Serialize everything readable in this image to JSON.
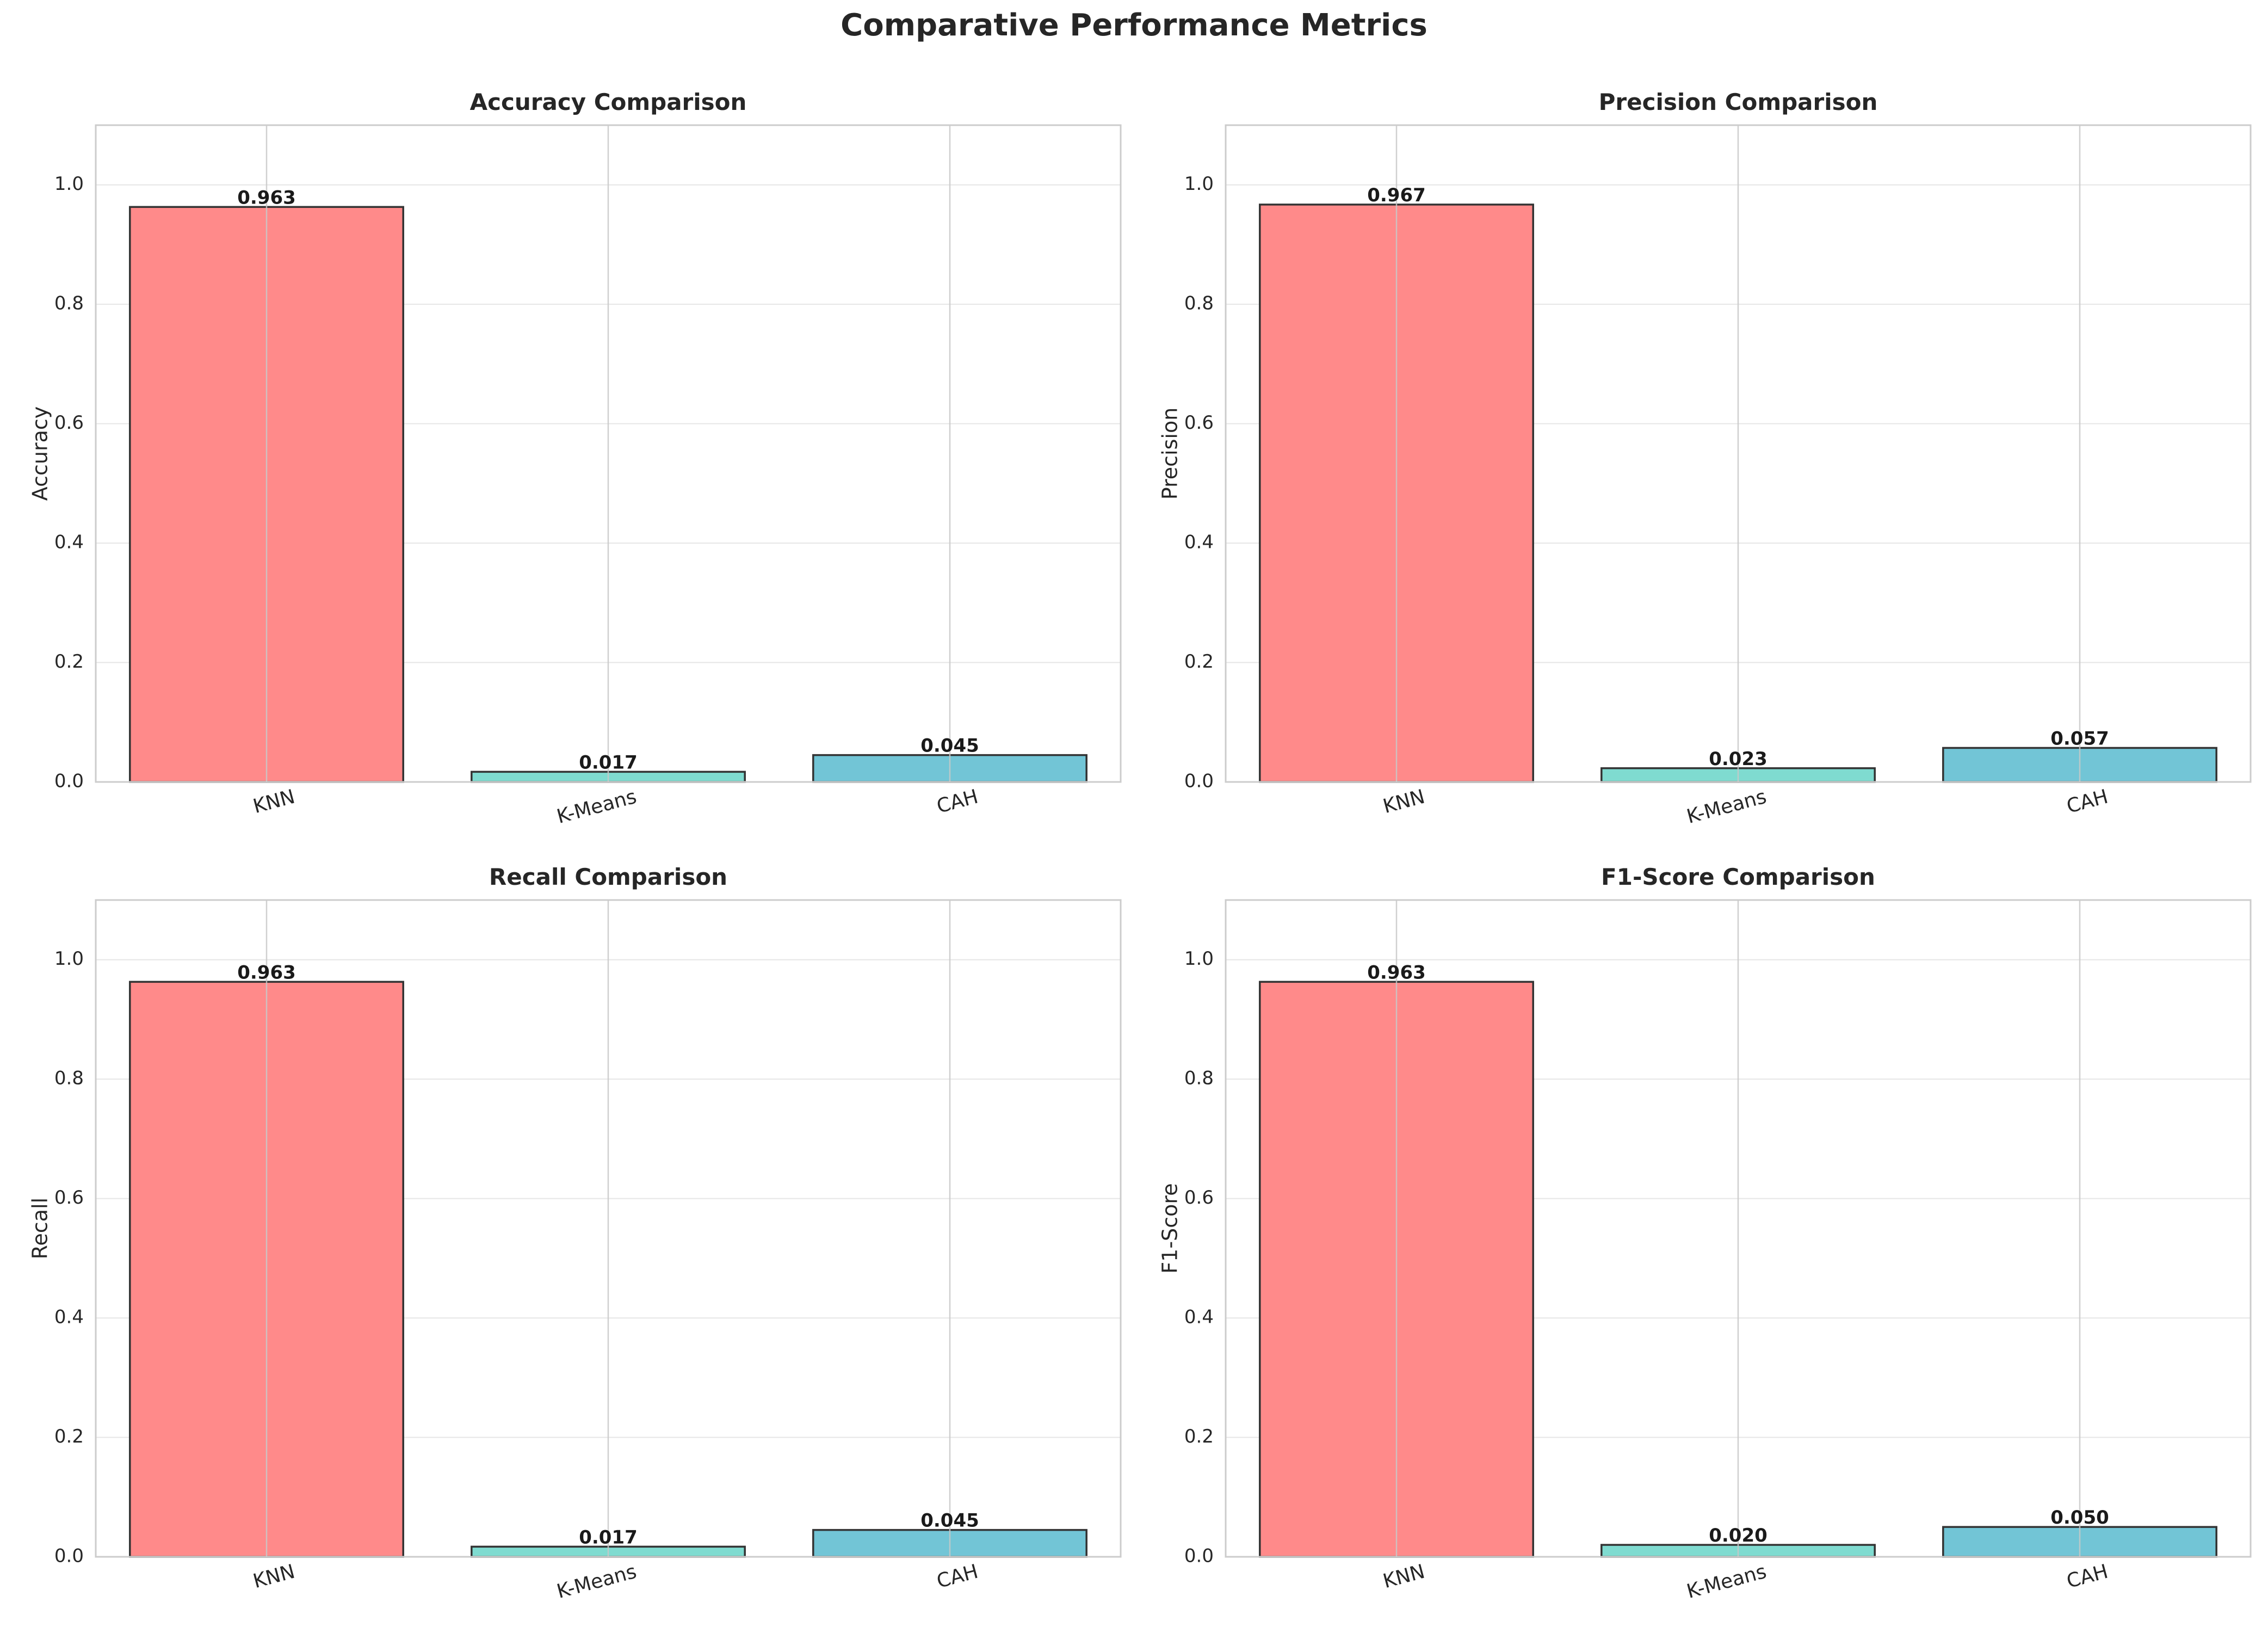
{
  "figure": {
    "title": "Comparative Performance Metrics"
  },
  "colors": {
    "KNN": "#ff8a8a",
    "K-Means": "#7fdbd0",
    "CAH": "#72c5d6",
    "edge": "#333333",
    "grid": "#e6e6e6",
    "axes_edge": "#cccccc"
  },
  "chart_data": [
    {
      "type": "bar",
      "title": "Accuracy Comparison",
      "xlabel": "",
      "ylabel": "Accuracy",
      "categories": [
        "KNN",
        "K-Means",
        "CAH"
      ],
      "values": [
        0.963,
        0.017,
        0.045
      ],
      "value_labels": [
        "0.963",
        "0.017",
        "0.045"
      ],
      "ylim": [
        0,
        1.1
      ],
      "yticks": [
        0.0,
        0.2,
        0.4,
        0.6,
        0.8,
        1.0
      ],
      "ytick_labels": [
        "0.0",
        "0.2",
        "0.4",
        "0.6",
        "0.8",
        "1.0"
      ],
      "grid": true
    },
    {
      "type": "bar",
      "title": "Precision Comparison",
      "xlabel": "",
      "ylabel": "Precision",
      "categories": [
        "KNN",
        "K-Means",
        "CAH"
      ],
      "values": [
        0.967,
        0.023,
        0.057
      ],
      "value_labels": [
        "0.967",
        "0.023",
        "0.057"
      ],
      "ylim": [
        0,
        1.1
      ],
      "yticks": [
        0.0,
        0.2,
        0.4,
        0.6,
        0.8,
        1.0
      ],
      "ytick_labels": [
        "0.0",
        "0.2",
        "0.4",
        "0.6",
        "0.8",
        "1.0"
      ],
      "grid": true
    },
    {
      "type": "bar",
      "title": "Recall Comparison",
      "xlabel": "",
      "ylabel": "Recall",
      "categories": [
        "KNN",
        "K-Means",
        "CAH"
      ],
      "values": [
        0.963,
        0.017,
        0.045
      ],
      "value_labels": [
        "0.963",
        "0.017",
        "0.045"
      ],
      "ylim": [
        0,
        1.1
      ],
      "yticks": [
        0.0,
        0.2,
        0.4,
        0.6,
        0.8,
        1.0
      ],
      "ytick_labels": [
        "0.0",
        "0.2",
        "0.4",
        "0.6",
        "0.8",
        "1.0"
      ],
      "grid": true
    },
    {
      "type": "bar",
      "title": "F1-Score Comparison",
      "xlabel": "",
      "ylabel": "F1-Score",
      "categories": [
        "KNN",
        "K-Means",
        "CAH"
      ],
      "values": [
        0.963,
        0.02,
        0.05
      ],
      "value_labels": [
        "0.963",
        "0.020",
        "0.050"
      ],
      "ylim": [
        0,
        1.1
      ],
      "yticks": [
        0.0,
        0.2,
        0.4,
        0.6,
        0.8,
        1.0
      ],
      "ytick_labels": [
        "0.0",
        "0.2",
        "0.4",
        "0.6",
        "0.8",
        "1.0"
      ],
      "grid": true
    }
  ]
}
